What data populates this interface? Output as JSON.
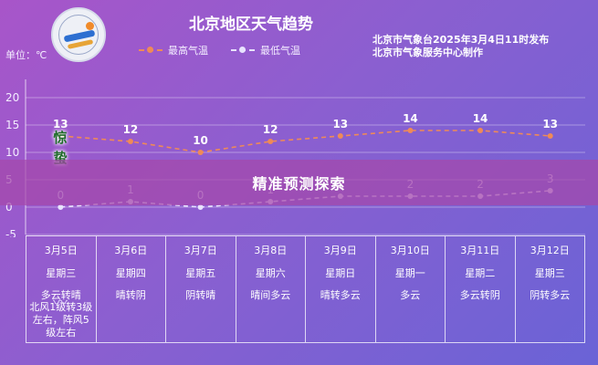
{
  "header": {
    "title": "北京地区天气趋势",
    "unit": "单位：℃",
    "legend_high": "最高气温",
    "legend_low": "最低气温",
    "publisher_line1": "北京市气象台2025年3月4日11时发布",
    "publisher_line2": "北京市气象服务中心制作"
  },
  "solar_term": "惊蛰",
  "banner": {
    "text": "精准预测探索"
  },
  "colors": {
    "high_line": "#ef8a57",
    "low_line": "#e8e3ff",
    "banner": "#a548aa"
  },
  "chart_data": {
    "type": "line",
    "categories": [
      "3月5日",
      "3月6日",
      "3月7日",
      "3月8日",
      "3月9日",
      "3月10日",
      "3月11日",
      "3月12日"
    ],
    "series": [
      {
        "name": "最高气温",
        "values": [
          13,
          12,
          10,
          12,
          13,
          14,
          14,
          13
        ]
      },
      {
        "name": "最低气温",
        "values": [
          0,
          1,
          0,
          1,
          2,
          2,
          2,
          3
        ]
      }
    ],
    "yticks": [
      20,
      15,
      10,
      5,
      0,
      -5
    ],
    "ylim": [
      -5,
      20
    ],
    "grid": true,
    "legend": "top"
  },
  "forecast": [
    {
      "date": "3月5日",
      "week": "星期三",
      "weather": "多云转晴",
      "wind": "北风1级转3级左右，阵风5级左右"
    },
    {
      "date": "3月6日",
      "week": "星期四",
      "weather": "晴转阴",
      "wind": ""
    },
    {
      "date": "3月7日",
      "week": "星期五",
      "weather": "阴转晴",
      "wind": ""
    },
    {
      "date": "3月8日",
      "week": "星期六",
      "weather": "晴间多云",
      "wind": ""
    },
    {
      "date": "3月9日",
      "week": "星期日",
      "weather": "晴转多云",
      "wind": ""
    },
    {
      "date": "3月10日",
      "week": "星期一",
      "weather": "多云",
      "wind": ""
    },
    {
      "date": "3月11日",
      "week": "星期二",
      "weather": "多云转阴",
      "wind": ""
    },
    {
      "date": "3月12日",
      "week": "星期三",
      "weather": "阴转多云",
      "wind": ""
    }
  ]
}
